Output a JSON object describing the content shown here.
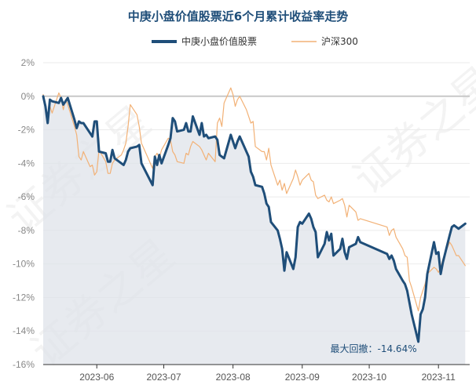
{
  "chart_data": {
    "type": "line",
    "title": "中庚小盘价值股票近6个月累计收益率走势",
    "ylim": [
      -16,
      2
    ],
    "y_ticks": [
      2,
      0,
      -2,
      -4,
      -6,
      -8,
      -10,
      -12,
      -14,
      -16
    ],
    "y_tick_labels": [
      "2%",
      "0%",
      "-2%",
      "-4%",
      "-6%",
      "-8%",
      "-10%",
      "-12%",
      "-14%",
      "-16%"
    ],
    "x_range": [
      "2023-05-08",
      "2023-11-15"
    ],
    "x_ticks": [
      {
        "date": "2023-06-01",
        "label": "2023-06"
      },
      {
        "date": "2023-07-01",
        "label": "2023-07"
      },
      {
        "date": "2023-08-01",
        "label": "2023-08"
      },
      {
        "date": "2023-09-01",
        "label": "2023-09"
      },
      {
        "date": "2023-10-01",
        "label": "2023-10"
      },
      {
        "date": "2023-11-01",
        "label": "2023-11"
      }
    ],
    "legend_position": "top",
    "grid": "horizontal",
    "zero_line": true,
    "series": [
      {
        "name": "中庚小盘价值股票",
        "color": "#1f4e79",
        "filled": true,
        "points": [
          [
            "2023-05-08",
            0
          ],
          [
            "2023-05-09",
            -0.6
          ],
          [
            "2023-05-10",
            -1.6
          ],
          [
            "2023-05-11",
            -0.2
          ],
          [
            "2023-05-12",
            -0.3
          ],
          [
            "2023-05-15",
            -0.4
          ],
          [
            "2023-05-16",
            -0.1
          ],
          [
            "2023-05-17",
            -0.5
          ],
          [
            "2023-05-18",
            -0.3
          ],
          [
            "2023-05-19",
            -0.1
          ],
          [
            "2023-05-22",
            -1.4
          ],
          [
            "2023-05-23",
            -1.9
          ],
          [
            "2023-05-24",
            -1.5
          ],
          [
            "2023-05-25",
            -1.6
          ],
          [
            "2023-05-26",
            -1.6
          ],
          [
            "2023-05-29",
            -2.2
          ],
          [
            "2023-05-30",
            -2.4
          ],
          [
            "2023-05-31",
            -1.5
          ],
          [
            "2023-06-01",
            -1.5
          ],
          [
            "2023-06-02",
            -3.3
          ],
          [
            "2023-06-05",
            -3.4
          ],
          [
            "2023-06-06",
            -3.9
          ],
          [
            "2023-06-07",
            -3.9
          ],
          [
            "2023-06-08",
            -3.2
          ],
          [
            "2023-06-09",
            -3.7
          ],
          [
            "2023-06-12",
            -4.0
          ],
          [
            "2023-06-13",
            -4.1
          ],
          [
            "2023-06-14",
            -3.8
          ],
          [
            "2023-06-15",
            -3.3
          ],
          [
            "2023-06-16",
            -3.1
          ],
          [
            "2023-06-19",
            -3.0
          ],
          [
            "2023-06-20",
            -2.9
          ],
          [
            "2023-06-21",
            -4.0
          ],
          [
            "2023-06-26",
            -5.3
          ],
          [
            "2023-06-27",
            -3.6
          ],
          [
            "2023-06-28",
            -4.1
          ],
          [
            "2023-06-29",
            -3.5
          ],
          [
            "2023-06-30",
            -4.0
          ],
          [
            "2023-07-03",
            -2.9
          ],
          [
            "2023-07-04",
            -2.5
          ],
          [
            "2023-07-05",
            -1.3
          ],
          [
            "2023-07-06",
            -1.5
          ],
          [
            "2023-07-07",
            -2.1
          ],
          [
            "2023-07-10",
            -2.0
          ],
          [
            "2023-07-11",
            -1.6
          ],
          [
            "2023-07-12",
            -2.1
          ],
          [
            "2023-07-13",
            -2.1
          ],
          [
            "2023-07-14",
            -1.2
          ],
          [
            "2023-07-17",
            -2.3
          ],
          [
            "2023-07-18",
            -1.6
          ],
          [
            "2023-07-19",
            -2.4
          ],
          [
            "2023-07-20",
            -2.3
          ],
          [
            "2023-07-21",
            -2.5
          ],
          [
            "2023-07-24",
            -2.4
          ],
          [
            "2023-07-25",
            -2.6
          ],
          [
            "2023-07-26",
            -3.5
          ],
          [
            "2023-07-27",
            -3.6
          ],
          [
            "2023-07-28",
            -3.7
          ],
          [
            "2023-07-31",
            -2.3
          ],
          [
            "2023-08-01",
            -2.7
          ],
          [
            "2023-08-02",
            -3.1
          ],
          [
            "2023-08-03",
            -2.7
          ],
          [
            "2023-08-04",
            -2.4
          ],
          [
            "2023-08-07",
            -3.3
          ],
          [
            "2023-08-08",
            -3.6
          ],
          [
            "2023-08-09",
            -4.5
          ],
          [
            "2023-08-10",
            -4.8
          ],
          [
            "2023-08-11",
            -5.3
          ],
          [
            "2023-08-14",
            -5.4
          ],
          [
            "2023-08-15",
            -5.8
          ],
          [
            "2023-08-16",
            -6.4
          ],
          [
            "2023-08-17",
            -6.6
          ],
          [
            "2023-08-18",
            -7.5
          ],
          [
            "2023-08-21",
            -8.0
          ],
          [
            "2023-08-22",
            -8.5
          ],
          [
            "2023-08-23",
            -9.1
          ],
          [
            "2023-08-24",
            -10.4
          ],
          [
            "2023-08-25",
            -9.3
          ],
          [
            "2023-08-28",
            -10.3
          ],
          [
            "2023-08-29",
            -9.6
          ],
          [
            "2023-08-30",
            -7.8
          ],
          [
            "2023-08-31",
            -7.5
          ],
          [
            "2023-09-01",
            -7.6
          ],
          [
            "2023-09-04",
            -7.0
          ],
          [
            "2023-09-05",
            -7.3
          ],
          [
            "2023-09-06",
            -7.8
          ],
          [
            "2023-09-07",
            -8.1
          ],
          [
            "2023-09-08",
            -9.6
          ],
          [
            "2023-09-11",
            -8.8
          ],
          [
            "2023-09-12",
            -8.1
          ],
          [
            "2023-09-13",
            -8.6
          ],
          [
            "2023-09-14",
            -8.2
          ],
          [
            "2023-09-15",
            -9.5
          ],
          [
            "2023-09-18",
            -9.1
          ],
          [
            "2023-09-19",
            -8.5
          ],
          [
            "2023-09-20",
            -9.3
          ],
          [
            "2023-09-21",
            -9.7
          ],
          [
            "2023-09-22",
            -9.0
          ],
          [
            "2023-09-25",
            -8.8
          ],
          [
            "2023-09-26",
            -8.4
          ],
          [
            "2023-09-27",
            -8.7
          ],
          [
            "2023-10-09",
            -9.4
          ],
          [
            "2023-10-10",
            -9.7
          ],
          [
            "2023-10-11",
            -9.5
          ],
          [
            "2023-10-12",
            -9.8
          ],
          [
            "2023-10-13",
            -10.3
          ],
          [
            "2023-10-16",
            -11.0
          ],
          [
            "2023-10-17",
            -11.2
          ],
          [
            "2023-10-18",
            -11.6
          ],
          [
            "2023-10-19",
            -12.3
          ],
          [
            "2023-10-20",
            -13.0
          ],
          [
            "2023-10-23",
            -14.64
          ],
          [
            "2023-10-24",
            -13.0
          ],
          [
            "2023-10-25",
            -12.7
          ],
          [
            "2023-10-26",
            -12.0
          ],
          [
            "2023-10-27",
            -10.6
          ],
          [
            "2023-10-30",
            -8.7
          ],
          [
            "2023-10-31",
            -9.4
          ],
          [
            "2023-11-01",
            -9.3
          ],
          [
            "2023-11-02",
            -10.6
          ],
          [
            "2023-11-03",
            -9.9
          ],
          [
            "2023-11-06",
            -8.3
          ],
          [
            "2023-11-07",
            -7.8
          ],
          [
            "2023-11-08",
            -7.7
          ],
          [
            "2023-11-09",
            -7.8
          ],
          [
            "2023-11-10",
            -7.9
          ],
          [
            "2023-11-13",
            -7.6
          ]
        ]
      },
      {
        "name": "沪深300",
        "color": "#f2b176",
        "filled": false,
        "points": [
          [
            "2023-05-08",
            0.1
          ],
          [
            "2023-05-09",
            -0.5
          ],
          [
            "2023-05-10",
            -1.2
          ],
          [
            "2023-05-11",
            -0.6
          ],
          [
            "2023-05-12",
            -1.0
          ],
          [
            "2023-05-15",
            0.2
          ],
          [
            "2023-05-16",
            -0.1
          ],
          [
            "2023-05-17",
            -0.8
          ],
          [
            "2023-05-18",
            -0.2
          ],
          [
            "2023-05-19",
            -0.5
          ],
          [
            "2023-05-22",
            -1.8
          ],
          [
            "2023-05-23",
            -2.3
          ],
          [
            "2023-05-24",
            -3.6
          ],
          [
            "2023-05-25",
            -3.8
          ],
          [
            "2023-05-26",
            -3.3
          ],
          [
            "2023-05-29",
            -4.2
          ],
          [
            "2023-05-30",
            -4.1
          ],
          [
            "2023-05-31",
            -4.7
          ],
          [
            "2023-06-01",
            -4.5
          ],
          [
            "2023-06-02",
            -3.2
          ],
          [
            "2023-06-05",
            -3.9
          ],
          [
            "2023-06-06",
            -4.6
          ],
          [
            "2023-06-07",
            -4.6
          ],
          [
            "2023-06-08",
            -4.0
          ],
          [
            "2023-06-09",
            -3.8
          ],
          [
            "2023-06-12",
            -3.5
          ],
          [
            "2023-06-13",
            -3.2
          ],
          [
            "2023-06-14",
            -2.8
          ],
          [
            "2023-06-15",
            -1.8
          ],
          [
            "2023-06-16",
            -0.5
          ],
          [
            "2023-06-19",
            -1.1
          ],
          [
            "2023-06-20",
            -1.8
          ],
          [
            "2023-06-21",
            -2.8
          ],
          [
            "2023-06-26",
            -4.3
          ],
          [
            "2023-06-27",
            -3.6
          ],
          [
            "2023-06-28",
            -3.4
          ],
          [
            "2023-06-29",
            -3.7
          ],
          [
            "2023-06-30",
            -3.2
          ],
          [
            "2023-07-03",
            -2.5
          ],
          [
            "2023-07-04",
            -2.6
          ],
          [
            "2023-07-05",
            -3.3
          ],
          [
            "2023-07-06",
            -3.5
          ],
          [
            "2023-07-07",
            -3.9
          ],
          [
            "2023-07-10",
            -4.0
          ],
          [
            "2023-07-11",
            -3.4
          ],
          [
            "2023-07-12",
            -3.5
          ],
          [
            "2023-07-13",
            -3.0
          ],
          [
            "2023-07-14",
            -2.7
          ],
          [
            "2023-07-17",
            -3.0
          ],
          [
            "2023-07-18",
            -3.2
          ],
          [
            "2023-07-19",
            -3.5
          ],
          [
            "2023-07-20",
            -3.8
          ],
          [
            "2023-07-21",
            -3.4
          ],
          [
            "2023-07-24",
            -3.9
          ],
          [
            "2023-07-25",
            -1.6
          ],
          [
            "2023-07-26",
            -1.3
          ],
          [
            "2023-07-27",
            -1.8
          ],
          [
            "2023-07-28",
            -0.4
          ],
          [
            "2023-07-31",
            0.5
          ],
          [
            "2023-08-01",
            0.1
          ],
          [
            "2023-08-02",
            -0.6
          ],
          [
            "2023-08-03",
            -0.2
          ],
          [
            "2023-08-04",
            0.0
          ],
          [
            "2023-08-07",
            -0.8
          ],
          [
            "2023-08-08",
            -1.2
          ],
          [
            "2023-08-09",
            -1.6
          ],
          [
            "2023-08-10",
            -1.5
          ],
          [
            "2023-08-11",
            -3.0
          ],
          [
            "2023-08-14",
            -3.3
          ],
          [
            "2023-08-15",
            -3.3
          ],
          [
            "2023-08-16",
            -3.8
          ],
          [
            "2023-08-17",
            -3.1
          ],
          [
            "2023-08-18",
            -4.1
          ],
          [
            "2023-08-21",
            -5.3
          ],
          [
            "2023-08-22",
            -5.0
          ],
          [
            "2023-08-23",
            -5.6
          ],
          [
            "2023-08-24",
            -5.2
          ],
          [
            "2023-08-25",
            -5.8
          ],
          [
            "2023-08-28",
            -4.9
          ],
          [
            "2023-08-29",
            -4.4
          ],
          [
            "2023-08-30",
            -4.8
          ],
          [
            "2023-08-31",
            -5.3
          ],
          [
            "2023-09-01",
            -5.0
          ],
          [
            "2023-09-04",
            -4.6
          ],
          [
            "2023-09-05",
            -5.0
          ],
          [
            "2023-09-06",
            -5.1
          ],
          [
            "2023-09-07",
            -5.9
          ],
          [
            "2023-09-08",
            -6.1
          ],
          [
            "2023-09-11",
            -5.9
          ],
          [
            "2023-09-12",
            -6.2
          ],
          [
            "2023-09-13",
            -6.3
          ],
          [
            "2023-09-14",
            -6.0
          ],
          [
            "2023-09-15",
            -6.4
          ],
          [
            "2023-09-18",
            -6.2
          ],
          [
            "2023-09-19",
            -6.1
          ],
          [
            "2023-09-20",
            -6.5
          ],
          [
            "2023-09-21",
            -7.2
          ],
          [
            "2023-09-22",
            -6.5
          ],
          [
            "2023-09-25",
            -6.9
          ],
          [
            "2023-09-26",
            -7.4
          ],
          [
            "2023-09-27",
            -7.3
          ],
          [
            "2023-10-09",
            -7.8
          ],
          [
            "2023-10-10",
            -8.3
          ],
          [
            "2023-10-11",
            -8.0
          ],
          [
            "2023-10-12",
            -7.9
          ],
          [
            "2023-10-13",
            -8.4
          ],
          [
            "2023-10-16",
            -9.1
          ],
          [
            "2023-10-17",
            -9.5
          ],
          [
            "2023-10-18",
            -9.6
          ],
          [
            "2023-10-19",
            -11.0
          ],
          [
            "2023-10-20",
            -11.4
          ],
          [
            "2023-10-23",
            -12.8
          ],
          [
            "2023-10-24",
            -12.0
          ],
          [
            "2023-10-25",
            -11.6
          ],
          [
            "2023-10-26",
            -11.2
          ],
          [
            "2023-10-27",
            -10.6
          ],
          [
            "2023-10-30",
            -10.2
          ],
          [
            "2023-10-31",
            -10.3
          ],
          [
            "2023-11-01",
            -10.5
          ],
          [
            "2023-11-02",
            -10.2
          ],
          [
            "2023-11-03",
            -9.7
          ],
          [
            "2023-11-06",
            -8.7
          ],
          [
            "2023-11-07",
            -8.9
          ],
          [
            "2023-11-08",
            -9.2
          ],
          [
            "2023-11-09",
            -9.5
          ],
          [
            "2023-11-10",
            -9.5
          ],
          [
            "2023-11-13",
            -10.1
          ]
        ]
      }
    ],
    "annotation": {
      "text": "最大回撤：-14.64%",
      "date": "2023-10-23",
      "value": -14.64
    }
  },
  "watermark": {
    "text": "证券之星"
  }
}
